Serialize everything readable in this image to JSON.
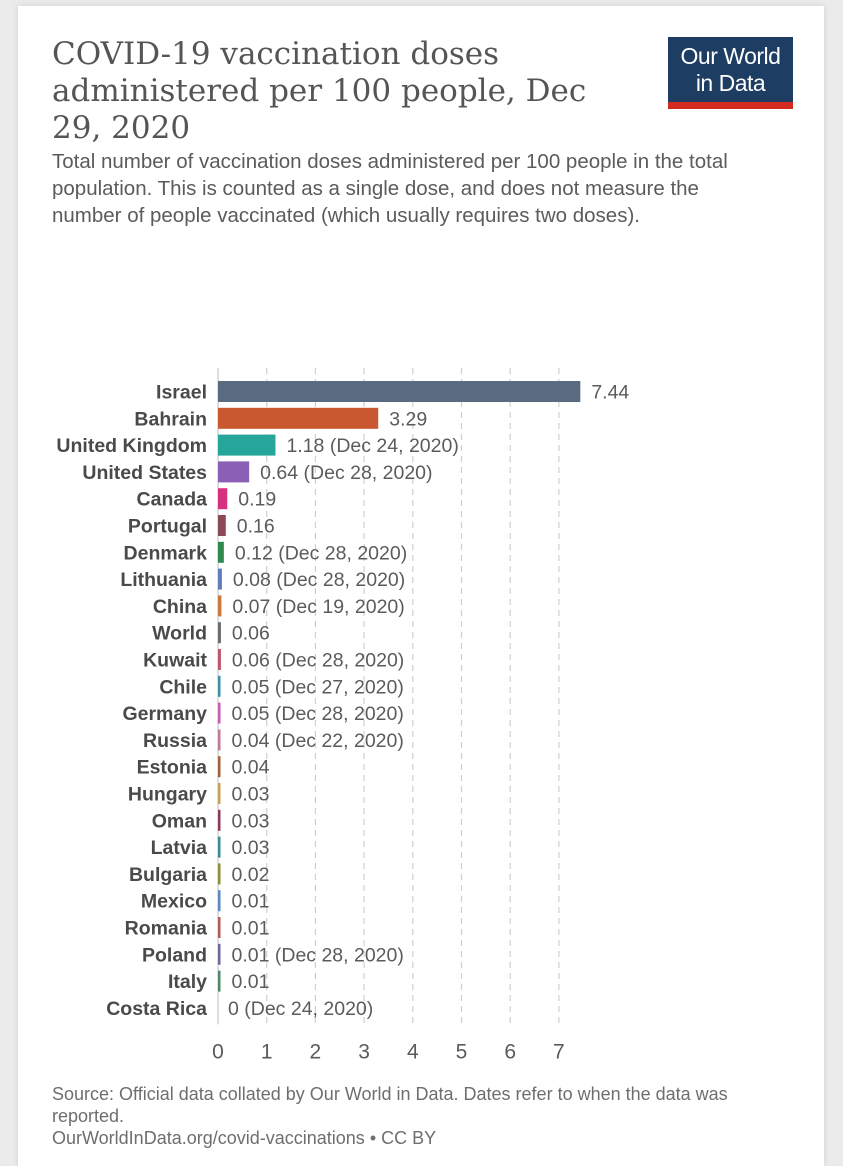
{
  "header": {
    "title": "COVID-19 vaccination doses administered per 100 people, Dec 29, 2020",
    "subtitle": "Total number of vaccination doses administered per 100 people in the total population. This is counted as a single dose, and does not measure the number of people vaccinated (which usually requires two doses).",
    "logo_line1": "Our World",
    "logo_line2": "in Data"
  },
  "footer": {
    "source": "Source: Official data collated by Our World in Data. Dates refer to when the data was reported.",
    "link": "OurWorldInData.org/covid-vaccinations",
    "license": " • CC BY"
  },
  "chart_data": {
    "type": "bar",
    "orientation": "horizontal",
    "title": "COVID-19 vaccination doses administered per 100 people, Dec 29, 2020",
    "xlabel": "",
    "ylabel": "",
    "xlim": [
      0,
      7.44
    ],
    "xticks": [
      0,
      1,
      2,
      3,
      4,
      5,
      6,
      7
    ],
    "grid": "vertical dashed",
    "categories": [
      "Israel",
      "Bahrain",
      "United Kingdom",
      "United States",
      "Canada",
      "Portugal",
      "Denmark",
      "Lithuania",
      "China",
      "World",
      "Kuwait",
      "Chile",
      "Germany",
      "Russia",
      "Estonia",
      "Hungary",
      "Oman",
      "Latvia",
      "Bulgaria",
      "Mexico",
      "Romania",
      "Poland",
      "Italy",
      "Costa Rica"
    ],
    "values": [
      7.44,
      3.29,
      1.18,
      0.64,
      0.19,
      0.16,
      0.12,
      0.08,
      0.07,
      0.06,
      0.06,
      0.05,
      0.05,
      0.04,
      0.04,
      0.03,
      0.03,
      0.03,
      0.02,
      0.01,
      0.01,
      0.01,
      0.01,
      0
    ],
    "value_labels": [
      "7.44",
      "3.29",
      "1.18 (Dec 24, 2020)",
      "0.64 (Dec 28, 2020)",
      "0.19",
      "0.16",
      "0.12 (Dec 28, 2020)",
      "0.08 (Dec 28, 2020)",
      "0.07 (Dec 19, 2020)",
      "0.06",
      "0.06 (Dec 28, 2020)",
      "0.05 (Dec 27, 2020)",
      "0.05 (Dec 28, 2020)",
      "0.04 (Dec 22, 2020)",
      "0.04",
      "0.03",
      "0.03",
      "0.03",
      "0.02",
      "0.01",
      "0.01",
      "0.01 (Dec 28, 2020)",
      "0.01",
      "0 (Dec 24, 2020)"
    ],
    "colors": [
      "#5a6a80",
      "#c9572f",
      "#26a69a",
      "#8a5fb5",
      "#d6317f",
      "#8b4a55",
      "#2e8a4e",
      "#5f7dbb",
      "#cc7a3c",
      "#6b6b6b",
      "#c0566c",
      "#3f8fa8",
      "#c85bb5",
      "#c27a9a",
      "#a0623a",
      "#c7a15a",
      "#8e3a5f",
      "#3a8a9a",
      "#8f8f3a",
      "#5a8ac0",
      "#b05a5a",
      "#6a6aa0",
      "#4a8a6a",
      "#a06a3a"
    ]
  }
}
